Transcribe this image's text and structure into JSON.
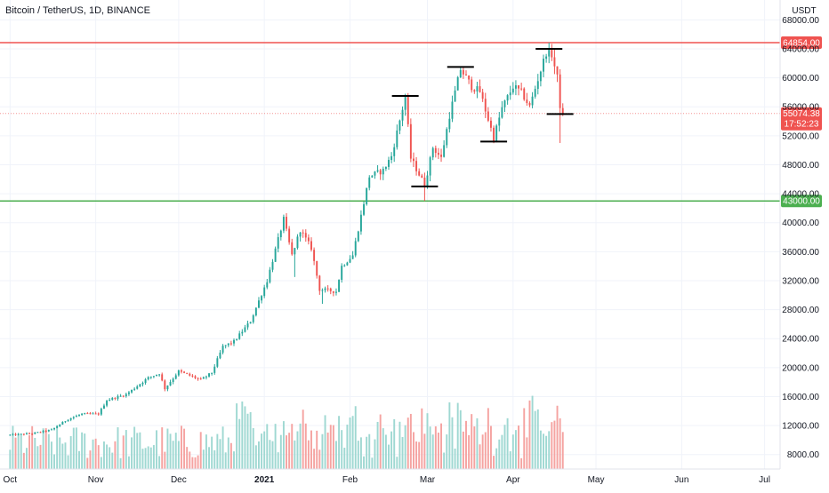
{
  "title": "Bitcoin / TetherUS, 1D, BINANCE",
  "colors": {
    "up": "#26a69a",
    "down": "#ef5350",
    "vol_up": "#9fd8d2",
    "vol_down": "#f5a3a1",
    "resistance": "#ef5350",
    "support": "#4caf50",
    "axis_text": "#131722",
    "grid": "#f0f3fa"
  },
  "chart_data": {
    "type": "candlestick",
    "title": "Bitcoin / TetherUS, 1D, BINANCE",
    "y_unit": "USDT",
    "ylim": [
      6000,
      70000
    ],
    "x_range": [
      "2020-09-28",
      "2021-07-05"
    ],
    "y_ticks": [
      8000,
      12000,
      16000,
      20000,
      24000,
      28000,
      32000,
      36000,
      40000,
      44000,
      48000,
      52000,
      56000,
      60000,
      64000,
      68000
    ],
    "x_ticks": [
      {
        "label": "Oct",
        "date": "2020-10-01"
      },
      {
        "label": "Nov",
        "date": "2020-11-01"
      },
      {
        "label": "Dec",
        "date": "2020-12-01"
      },
      {
        "label": "2021",
        "date": "2021-01-01"
      },
      {
        "label": "Feb",
        "date": "2021-02-01"
      },
      {
        "label": "Mar",
        "date": "2021-03-01"
      },
      {
        "label": "Apr",
        "date": "2021-04-01"
      },
      {
        "label": "May",
        "date": "2021-05-01"
      },
      {
        "label": "Jun",
        "date": "2021-06-01"
      },
      {
        "label": "Jul",
        "date": "2021-07-01"
      }
    ],
    "horizontal_lines": [
      {
        "name": "resistance",
        "value": 64854.0,
        "label": "64854.00",
        "color": "#ef5350"
      },
      {
        "name": "support",
        "value": 43000.0,
        "label": "43000.00",
        "color": "#4caf50"
      }
    ],
    "last_price": {
      "value": 55074.38,
      "label": "55074.38",
      "countdown": "17:52:23"
    },
    "levels": [
      {
        "date": "2021-02-21",
        "value": 57500
      },
      {
        "date": "2021-02-28",
        "value": 45000
      },
      {
        "date": "2021-03-13",
        "value": 61500
      },
      {
        "date": "2021-03-25",
        "value": 51200
      },
      {
        "date": "2021-04-14",
        "value": 64000
      },
      {
        "date": "2021-04-18",
        "value": 55000
      }
    ],
    "anchors": [
      [
        "2020-10-01",
        10700
      ],
      [
        "2020-10-09",
        10900
      ],
      [
        "2020-10-16",
        11400
      ],
      [
        "2020-10-22",
        12900
      ],
      [
        "2020-10-27",
        13600
      ],
      [
        "2020-11-02",
        13600
      ],
      [
        "2020-11-05",
        15500
      ],
      [
        "2020-11-12",
        16300
      ],
      [
        "2020-11-20",
        18600
      ],
      [
        "2020-11-24",
        19200
      ],
      [
        "2020-11-26",
        17100
      ],
      [
        "2020-12-01",
        19500
      ],
      [
        "2020-12-09",
        18300
      ],
      [
        "2020-12-13",
        19300
      ],
      [
        "2020-12-17",
        22900
      ],
      [
        "2020-12-21",
        23600
      ],
      [
        "2020-12-27",
        26400
      ],
      [
        "2021-01-02",
        32000
      ],
      [
        "2021-01-08",
        40500
      ],
      [
        "2021-01-11",
        35500
      ],
      [
        "2021-01-14",
        39000
      ],
      [
        "2021-01-18",
        36500
      ],
      [
        "2021-01-21",
        30800
      ],
      [
        "2021-01-27",
        30500
      ],
      [
        "2021-01-29",
        34000
      ],
      [
        "2021-02-02",
        35500
      ],
      [
        "2021-02-08",
        46400
      ],
      [
        "2021-02-13",
        47200
      ],
      [
        "2021-02-16",
        49200
      ],
      [
        "2021-02-21",
        57400
      ],
      [
        "2021-02-23",
        48900
      ],
      [
        "2021-02-28",
        45200
      ],
      [
        "2021-03-03",
        50400
      ],
      [
        "2021-03-06",
        48900
      ],
      [
        "2021-03-09",
        54800
      ],
      [
        "2021-03-13",
        61200
      ],
      [
        "2021-03-17",
        58800
      ],
      [
        "2021-03-20",
        58100
      ],
      [
        "2021-03-25",
        51700
      ],
      [
        "2021-03-28",
        55800
      ],
      [
        "2021-04-01",
        58800
      ],
      [
        "2021-04-04",
        58000
      ],
      [
        "2021-04-07",
        56000
      ],
      [
        "2021-04-10",
        59800
      ],
      [
        "2021-04-13",
        63500
      ],
      [
        "2021-04-15",
        63200
      ],
      [
        "2021-04-17",
        60000
      ],
      [
        "2021-04-18",
        56200
      ],
      [
        "2021-04-19",
        55074
      ]
    ]
  }
}
